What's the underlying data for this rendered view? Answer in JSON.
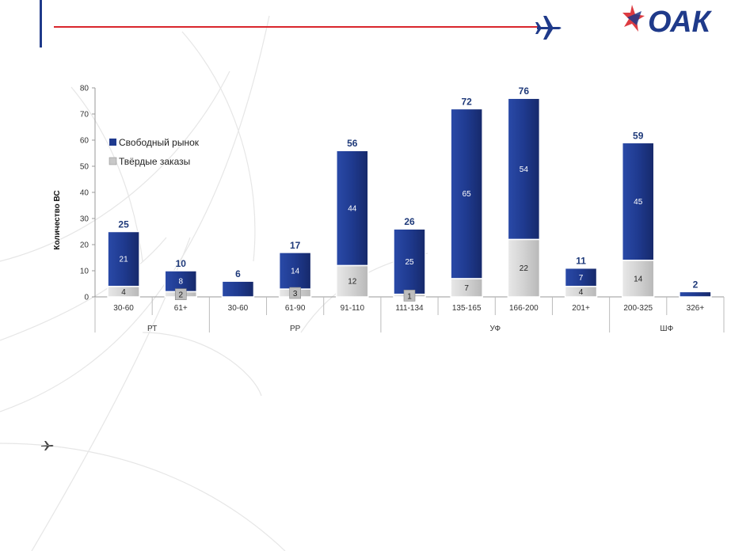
{
  "colors": {
    "accent_blue": "#1f3a8a",
    "accent_red": "#d9262c",
    "free_market": "#1f3a8f",
    "firm_orders": "#d4d4d4"
  },
  "logo": {
    "text": "ОАК"
  },
  "chart_data": {
    "type": "bar",
    "stacked": true,
    "ylabel": "Количество ВС",
    "ylim": [
      0,
      80
    ],
    "yticks": [
      0,
      10,
      20,
      30,
      40,
      50,
      60,
      70,
      80
    ],
    "legend_position": "top-left",
    "categories": [
      "30-60",
      "61+",
      "30-60",
      "61-90",
      "91-110",
      "111-134",
      "135-165",
      "166-200",
      "201+",
      "200-325",
      "326+"
    ],
    "groups": [
      {
        "label": "РТ",
        "start": 0,
        "end": 1
      },
      {
        "label": "РР",
        "start": 2,
        "end": 4
      },
      {
        "label": "УФ",
        "start": 5,
        "end": 8
      },
      {
        "label": "ШФ",
        "start": 9,
        "end": 10
      }
    ],
    "totals": [
      25,
      10,
      6,
      17,
      56,
      26,
      72,
      76,
      11,
      59,
      2
    ],
    "series": [
      {
        "name": "Твёрдые заказы",
        "values": [
          4,
          2,
          0,
          3,
          12,
          1,
          7,
          22,
          4,
          14,
          0
        ],
        "labels": [
          "4",
          "2",
          "",
          "3",
          "12",
          "1",
          "7",
          "22",
          "4",
          "14",
          ""
        ]
      },
      {
        "name": "Свободный рынок",
        "values": [
          21,
          8,
          6,
          14,
          44,
          25,
          65,
          54,
          7,
          45,
          2
        ],
        "labels": [
          "21",
          "8",
          "",
          "14",
          "44",
          "25",
          "65",
          "54",
          "7",
          "45",
          ""
        ]
      }
    ]
  }
}
